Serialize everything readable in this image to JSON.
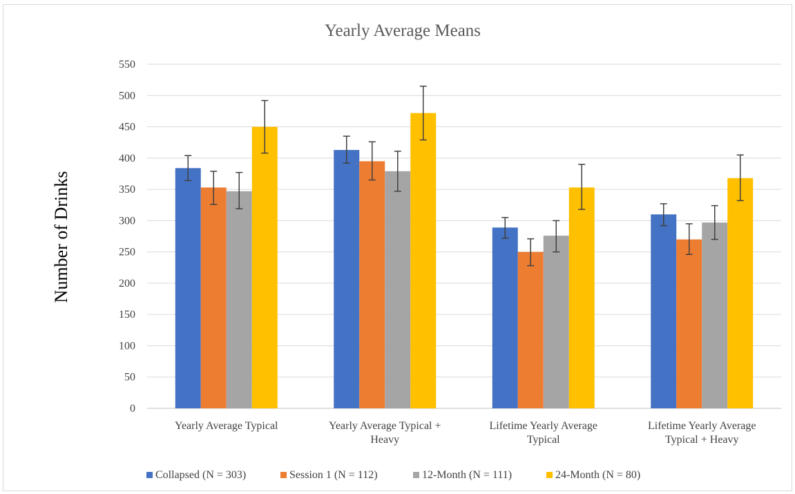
{
  "chart_data": {
    "type": "bar",
    "title": "Yearly Average Means",
    "ylabel": "Number of Drinks",
    "xlabel": "",
    "ylim": [
      0,
      550
    ],
    "yticks": [
      0,
      50,
      100,
      150,
      200,
      250,
      300,
      350,
      400,
      450,
      500,
      550
    ],
    "grid": true,
    "legend_position": "bottom",
    "categories": [
      [
        "Yearly Average Typical"
      ],
      [
        "Yearly Average Typical +",
        "Heavy"
      ],
      [
        "Lifetime Yearly Average",
        "Typical"
      ],
      [
        "Lifetime Yearly Average",
        "Typical + Heavy"
      ]
    ],
    "series": [
      {
        "name": "Collapsed (N = 303)",
        "color": "#4472c4",
        "values": [
          384,
          413,
          289,
          310
        ],
        "error_low": [
          364,
          392,
          272,
          292
        ],
        "error_high": [
          404,
          435,
          305,
          327
        ]
      },
      {
        "name": "Session 1 (N = 112)",
        "color": "#ed7d31",
        "values": [
          353,
          395,
          250,
          270
        ],
        "error_low": [
          326,
          365,
          228,
          246
        ],
        "error_high": [
          379,
          426,
          271,
          295
        ]
      },
      {
        "name": "12-Month (N  = 111)",
        "color": "#a5a5a5",
        "values": [
          347,
          379,
          276,
          297
        ],
        "error_low": [
          319,
          347,
          250,
          270
        ],
        "error_high": [
          377,
          411,
          300,
          324
        ]
      },
      {
        "name": "24-Month (N = 80)",
        "color": "#ffc000",
        "values": [
          450,
          472,
          353,
          368
        ],
        "error_low": [
          408,
          429,
          318,
          332
        ],
        "error_high": [
          492,
          515,
          390,
          405
        ]
      }
    ]
  }
}
